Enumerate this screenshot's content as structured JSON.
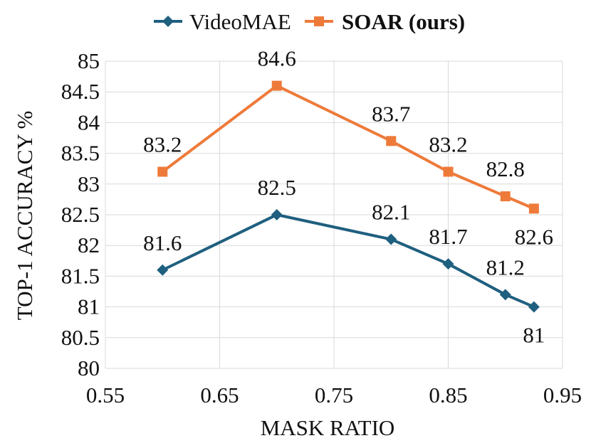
{
  "chart_data": {
    "type": "line",
    "title": "",
    "xlabel": "MASK RATIO",
    "ylabel": "TOP-1 ACCURACY %",
    "xlim": [
      0.55,
      0.95
    ],
    "ylim": [
      80,
      85
    ],
    "x_ticks": [
      "0.55",
      "0.65",
      "0.75",
      "0.85",
      "0.95"
    ],
    "y_ticks": [
      "80",
      "80.5",
      "81",
      "81.5",
      "82",
      "82.5",
      "83",
      "83.5",
      "84",
      "84.5",
      "85"
    ],
    "grid": true,
    "legend_position": "top",
    "series": [
      {
        "name": "VideoMAE",
        "color": "#1f5f7f",
        "marker": "diamond",
        "bold": false,
        "x": [
          0.6,
          0.7,
          0.8,
          0.85,
          0.9,
          0.925
        ],
        "y": [
          81.6,
          82.5,
          82.1,
          81.7,
          81.2,
          81.0
        ],
        "labels": [
          "81.6",
          "82.5",
          "82.1",
          "81.7",
          "81.2",
          "81"
        ]
      },
      {
        "name": "SOAR (ours)",
        "color": "#ee7a3a",
        "marker": "square",
        "bold": true,
        "x": [
          0.6,
          0.7,
          0.8,
          0.85,
          0.9,
          0.925
        ],
        "y": [
          83.2,
          84.6,
          83.7,
          83.2,
          82.8,
          82.6
        ],
        "labels": [
          "83.2",
          "84.6",
          "83.7",
          "83.2",
          "82.8",
          "82.6"
        ]
      }
    ]
  }
}
